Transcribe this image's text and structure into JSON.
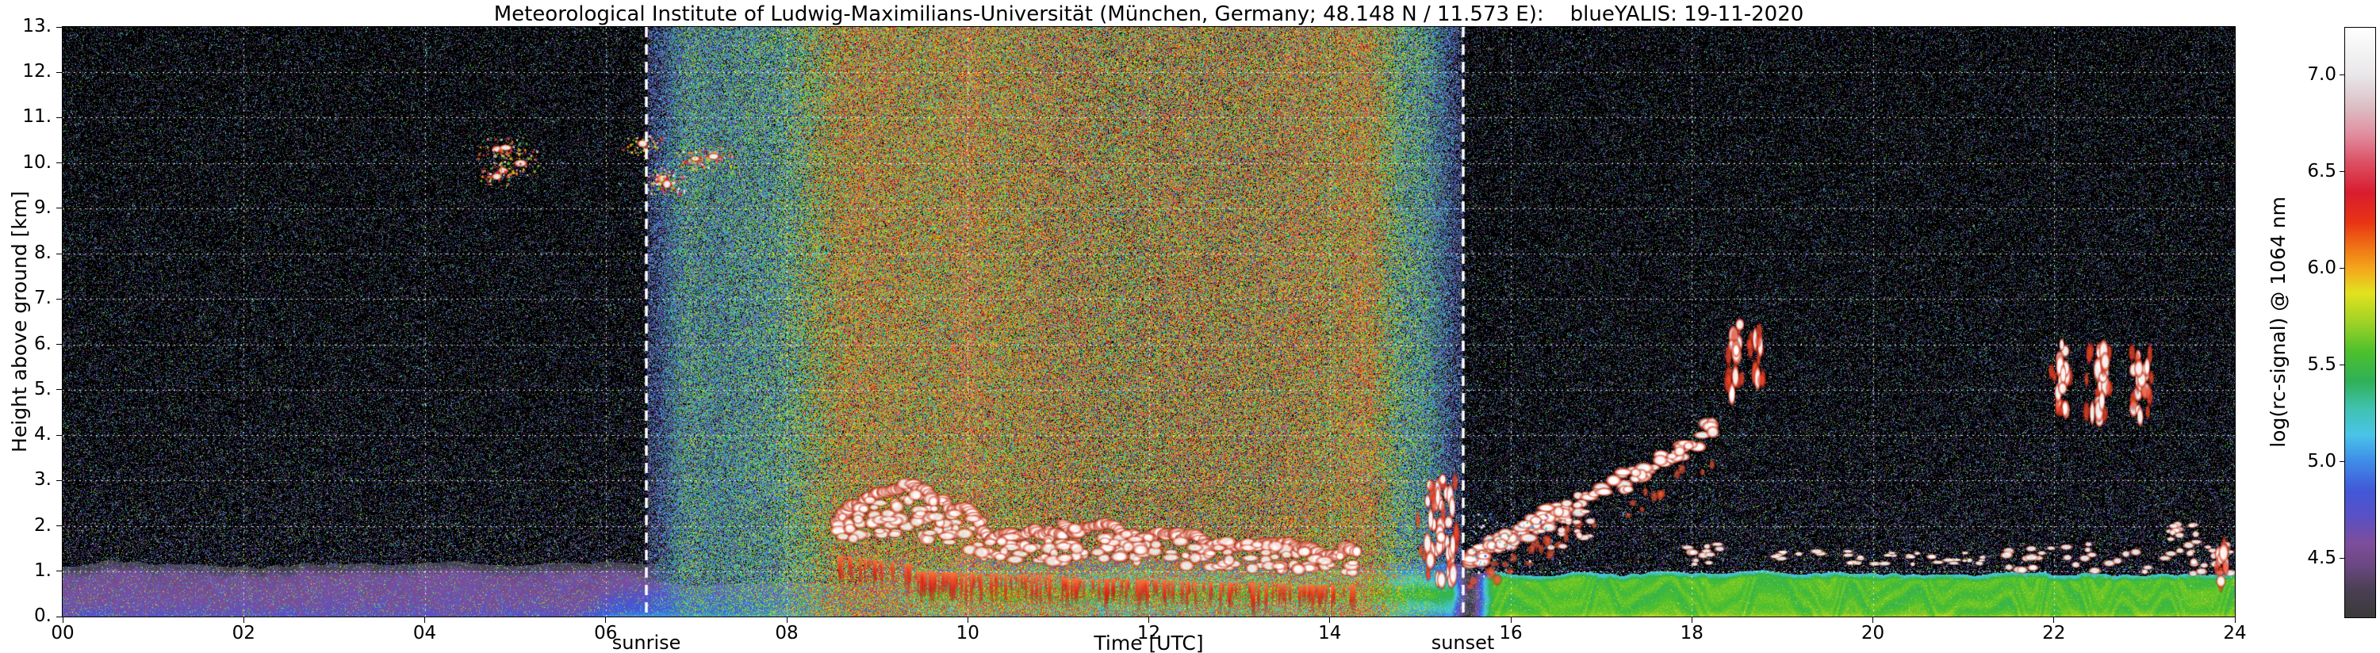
{
  "chart_data": {
    "type": "heatmap",
    "title": "Meteorological Institute of Ludwig-Maximilians-Universität (München, Germany; 48.148 N / 11.573 E):    blueYALIS: 19-11-2020",
    "xlabel": "Time [UTC]",
    "ylabel": "Height above ground [km]",
    "xlim": [
      0,
      24
    ],
    "ylim": [
      0,
      13
    ],
    "xticks": [
      {
        "v": 0,
        "label": "00"
      },
      {
        "v": 2,
        "label": "02"
      },
      {
        "v": 4,
        "label": "04"
      },
      {
        "v": 6,
        "label": "06"
      },
      {
        "v": 8,
        "label": "08"
      },
      {
        "v": 10,
        "label": "10"
      },
      {
        "v": 12,
        "label": "12"
      },
      {
        "v": 14,
        "label": "14"
      },
      {
        "v": 16,
        "label": "16"
      },
      {
        "v": 18,
        "label": "18"
      },
      {
        "v": 20,
        "label": "20"
      },
      {
        "v": 22,
        "label": "22"
      },
      {
        "v": 24,
        "label": "24"
      }
    ],
    "yticks": [
      {
        "v": 0,
        "label": "0."
      },
      {
        "v": 1,
        "label": "1."
      },
      {
        "v": 2,
        "label": "2."
      },
      {
        "v": 3,
        "label": "3."
      },
      {
        "v": 4,
        "label": "4."
      },
      {
        "v": 5,
        "label": "5."
      },
      {
        "v": 6,
        "label": "6."
      },
      {
        "v": 7,
        "label": "7."
      },
      {
        "v": 8,
        "label": "8."
      },
      {
        "v": 9,
        "label": "9."
      },
      {
        "v": 10,
        "label": "10."
      },
      {
        "v": 11,
        "label": "11."
      },
      {
        "v": 12,
        "label": "12."
      },
      {
        "v": 13,
        "label": "13."
      }
    ],
    "grid": {
      "horizontal_km": [
        1,
        2,
        3,
        4,
        5,
        6,
        7,
        8,
        9,
        10,
        11,
        12
      ],
      "vertical_hours": [
        2,
        4,
        6,
        8,
        10,
        12,
        14,
        16,
        18,
        20,
        22
      ],
      "style": "white-dashed"
    },
    "colorbar": {
      "label": "log(rc-signal) @ 1064 nm",
      "vmin": 4.2,
      "vmax": 7.25,
      "ticks": [
        4.5,
        5.0,
        5.5,
        6.0,
        6.5,
        7.0
      ],
      "tick_labels": [
        "4.5",
        "5.0",
        "5.5",
        "6.0",
        "6.5",
        "7.0"
      ],
      "stops": [
        [
          0.0,
          "#3a3a3a"
        ],
        [
          0.045,
          "#4a3f52"
        ],
        [
          0.09,
          "#6c4884"
        ],
        [
          0.125,
          "#7d4e9a"
        ],
        [
          0.17,
          "#5a50c4"
        ],
        [
          0.215,
          "#4158d8"
        ],
        [
          0.265,
          "#3f8ce8"
        ],
        [
          0.31,
          "#49c4e8"
        ],
        [
          0.355,
          "#40c2ae"
        ],
        [
          0.4,
          "#2fb058"
        ],
        [
          0.45,
          "#4cc02c"
        ],
        [
          0.5,
          "#9ed226"
        ],
        [
          0.55,
          "#e2e21e"
        ],
        [
          0.59,
          "#f4a81c"
        ],
        [
          0.63,
          "#f07014"
        ],
        [
          0.67,
          "#e83414"
        ],
        [
          0.72,
          "#d81c2e"
        ],
        [
          0.77,
          "#dc4e62"
        ],
        [
          0.82,
          "#e08fa0"
        ],
        [
          0.87,
          "#dcc2c8"
        ],
        [
          0.92,
          "#e9e7e9"
        ],
        [
          1.0,
          "#ffffff"
        ]
      ]
    },
    "annotations": [
      {
        "label": "sunrise",
        "time": 6.45,
        "line": "white-dashed-thick"
      },
      {
        "label": "sunset",
        "time": 15.47,
        "line": "white-dashed-thick"
      }
    ],
    "layers": [
      {
        "name": "nocturnal-residual-layer",
        "color": "purple",
        "t": [
          0.0,
          7.05
        ],
        "h_top": 1.1,
        "signal_range": [
          4.4,
          4.7
        ]
      },
      {
        "name": "morning-surface-layer",
        "color": "blue",
        "t": [
          5.1,
          9.9
        ],
        "h_top": 0.72,
        "signal_range": [
          4.6,
          5.0
        ]
      },
      {
        "name": "daytime-mixed-layer",
        "color": "cyan-green",
        "t": [
          8.8,
          15.55
        ],
        "h_top": 1.2,
        "signal_range": [
          4.9,
          5.6
        ]
      },
      {
        "name": "evening-surface-layer",
        "color": "green",
        "t": [
          15.45,
          24.0
        ],
        "h_top": 0.95,
        "signal_range": [
          5.2,
          5.6
        ]
      },
      {
        "name": "daylight-background-noise",
        "color": "brown-orange",
        "t": [
          6.45,
          15.47
        ],
        "h_top": 13,
        "signal_range": [
          4.5,
          6.6
        ]
      }
    ],
    "clouds": [
      {
        "kind": "cirrus",
        "t": [
          4.55,
          5.45
        ],
        "h": [
          9.6,
          10.7
        ],
        "n": 240,
        "warm": 0.2
      },
      {
        "kind": "cirrus",
        "t": [
          6.25,
          7.55
        ],
        "h": [
          9.35,
          10.65
        ],
        "n": 380,
        "warm": 0.5
      },
      {
        "kind": "stratus",
        "t": [
          8.55,
          9.4
        ],
        "base": [
          1.35,
          1.15
        ],
        "top": [
          2.25,
          3.05
        ],
        "n": 60,
        "virga": 0.45
      },
      {
        "kind": "stratus",
        "t": [
          9.4,
          10.15
        ],
        "base": [
          1.0,
          0.95
        ],
        "top": [
          2.9,
          2.1
        ],
        "n": 60,
        "virga": 0.6
      },
      {
        "kind": "stratus",
        "t": [
          10.15,
          11.05
        ],
        "base": [
          0.95,
          0.9
        ],
        "top": [
          1.85,
          1.7
        ],
        "n": 48,
        "virga": 0.4
      },
      {
        "kind": "stratus",
        "t": [
          11.05,
          12.35
        ],
        "base": [
          0.85,
          0.8
        ],
        "top": [
          2.0,
          1.8
        ],
        "n": 70,
        "virga": 0.55
      },
      {
        "kind": "stratus",
        "t": [
          12.35,
          13.65
        ],
        "base": [
          0.78,
          0.72
        ],
        "top": [
          1.75,
          1.55
        ],
        "n": 65,
        "virga": 0.5
      },
      {
        "kind": "stratus",
        "t": [
          13.65,
          14.3
        ],
        "base": [
          0.7,
          0.7
        ],
        "top": [
          1.5,
          1.35
        ],
        "n": 30,
        "virga": 0.75
      },
      {
        "kind": "column",
        "t": [
          14.95,
          15.5
        ],
        "h": [
          0.7,
          3.05
        ],
        "n": 55
      },
      {
        "kind": "rising",
        "path": [
          [
            15.55,
            1.3
          ],
          [
            16.2,
            1.95
          ],
          [
            16.9,
            2.6
          ],
          [
            17.6,
            3.3
          ],
          [
            18.25,
            4.15
          ]
        ],
        "thick": 0.5,
        "n": 140
      },
      {
        "kind": "column",
        "t": [
          18.38,
          18.58
        ],
        "h": [
          4.9,
          6.65
        ],
        "n": 20
      },
      {
        "kind": "column",
        "t": [
          18.62,
          18.8
        ],
        "h": [
          5.1,
          6.45
        ],
        "n": 16
      },
      {
        "kind": "blobs",
        "t": [
          16.3,
          16.95
        ],
        "h": [
          1.5,
          2.4
        ],
        "n": 14
      },
      {
        "kind": "blobs",
        "t": [
          17.95,
          18.4
        ],
        "h": [
          1.15,
          1.6
        ],
        "n": 12
      },
      {
        "kind": "thin",
        "t": [
          18.9,
          21.3
        ],
        "h": [
          1.15,
          1.45
        ],
        "n": 64
      },
      {
        "kind": "column",
        "t": [
          21.95,
          22.2
        ],
        "h": [
          4.3,
          6.0
        ],
        "n": 24
      },
      {
        "kind": "column",
        "t": [
          22.35,
          22.65
        ],
        "h": [
          4.2,
          6.1
        ],
        "n": 28
      },
      {
        "kind": "column",
        "t": [
          22.8,
          23.1
        ],
        "h": [
          4.3,
          5.9
        ],
        "n": 24
      },
      {
        "kind": "blobs",
        "t": [
          21.45,
          23.95
        ],
        "h": [
          0.95,
          1.6
        ],
        "n": 46
      },
      {
        "kind": "blobs",
        "t": [
          23.25,
          23.6
        ],
        "h": [
          1.5,
          2.05
        ],
        "n": 14
      },
      {
        "kind": "column",
        "t": [
          23.78,
          23.97
        ],
        "h": [
          0.6,
          1.6
        ],
        "n": 12
      },
      {
        "kind": "speckle",
        "t": [
          15.55,
          16.7
        ],
        "h": [
          0.9,
          2.3
        ],
        "n": 220
      }
    ]
  }
}
